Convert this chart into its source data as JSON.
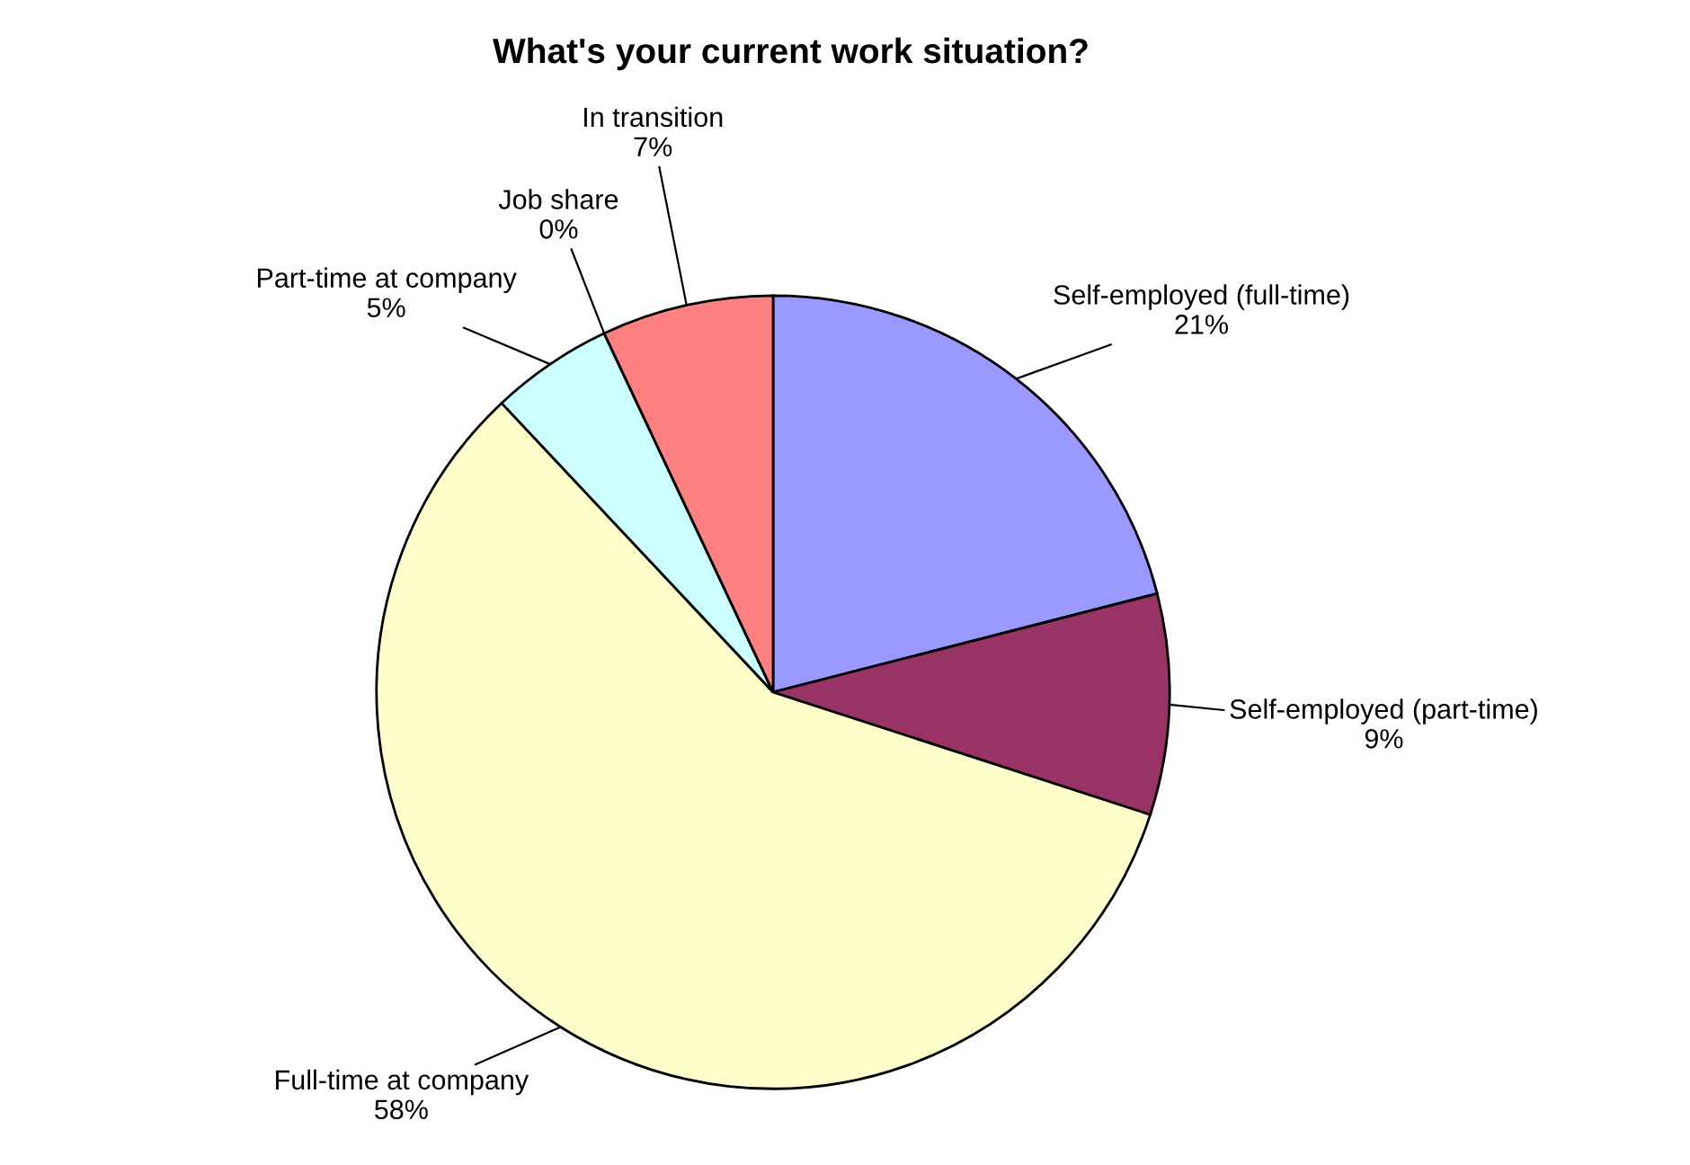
{
  "chart_data": {
    "type": "pie",
    "title": "What's your current work situation?",
    "categories": [
      "Self-employed (full-time)",
      "Self-employed (part-time)",
      "Full-time at company",
      "Part-time at company",
      "Job share",
      "In transition"
    ],
    "values": [
      21,
      9,
      58,
      5,
      0,
      7
    ],
    "value_labels": [
      "21%",
      "9%",
      "58%",
      "5%",
      "0%",
      "7%"
    ],
    "colors": [
      "#9999ff",
      "#993366",
      "#ffffcc",
      "#ccffff",
      "#660066",
      "#ff8080"
    ],
    "legend": false
  }
}
